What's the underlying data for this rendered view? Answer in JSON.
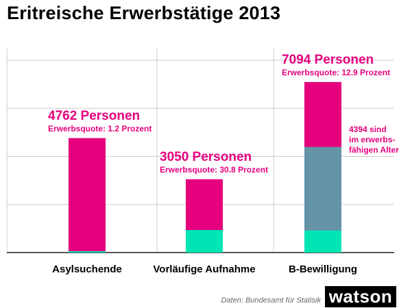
{
  "title": "Eritreische Erwerbstätige 2013",
  "source": "Daten: Bundesamt für Statisik",
  "logo": "watson",
  "annotation": "4394 sind\nim erwerbs-\nfähigen Alter",
  "colors": {
    "total": "#e6007e",
    "employed": "#00e5b4",
    "working_age": "#6494a6",
    "grid": "#cccccc",
    "axis": "#555555"
  },
  "chart_data": {
    "type": "bar",
    "stacked": true,
    "title": "Eritreische Erwerbstätige 2013",
    "categories": [
      "Asylsuchende",
      "Vorläufige Aufnahme",
      "B-Bewilligung"
    ],
    "totals": [
      4762,
      3050,
      7094
    ],
    "total_labels": [
      "4762 Personen",
      "3050 Personen",
      "7094 Personen"
    ],
    "rate_labels": [
      "Erwerbsquote: 1.2 Prozent",
      "Erwerbsquote: 30.8 Prozent",
      "Erwerbsquote: 12.9 Prozent"
    ],
    "employment_rate_percent": [
      1.2,
      30.8,
      12.9
    ],
    "employed": [
      57,
      939,
      915
    ],
    "working_age": [
      null,
      null,
      4394
    ],
    "ylim": [
      0,
      8000
    ],
    "yticks": [
      0,
      2000,
      4000,
      6000,
      8000
    ],
    "grid": true
  }
}
